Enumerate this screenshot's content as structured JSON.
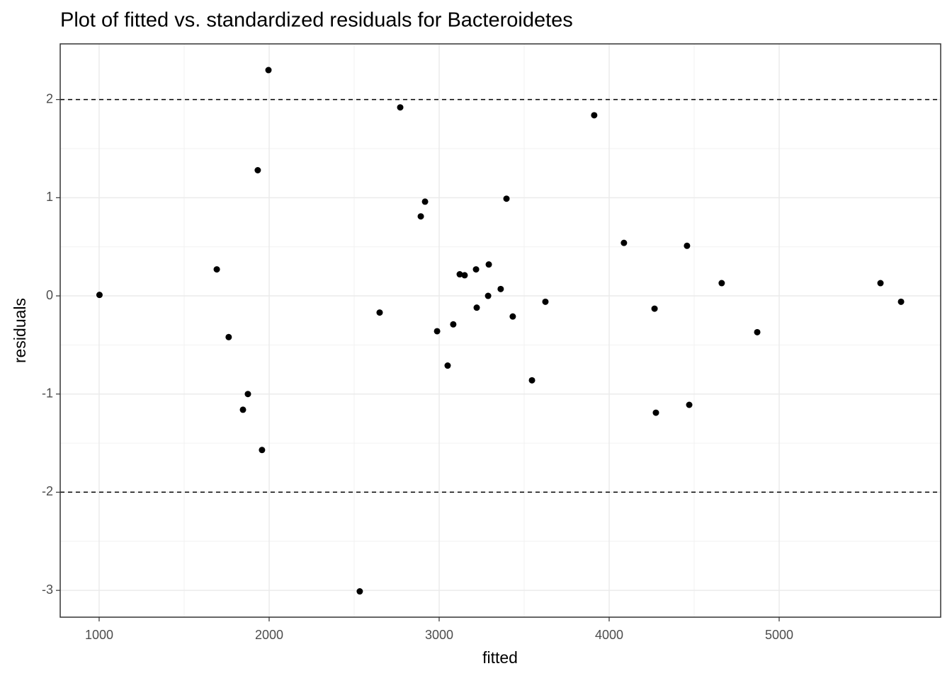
{
  "chart_data": {
    "type": "scatter",
    "title": "Plot of fitted vs. standardized residuals for Bacteroidetes",
    "x_label": "fitted",
    "y_label": "residuals",
    "color": "#000000",
    "grid": true,
    "xlim": [
      771,
      5950
    ],
    "ylim": [
      -3.273,
      2.567
    ],
    "xticks": [
      1000,
      2000,
      3000,
      4000,
      5000
    ],
    "yticks": [
      -3,
      -2,
      -1,
      0,
      1,
      2
    ],
    "hlines": [
      -2,
      2
    ],
    "x": [
      1002,
      1692,
      1762,
      1846,
      1875,
      1933,
      1958,
      1996,
      2533,
      2650,
      2771,
      2892,
      2917,
      2988,
      3050,
      3083,
      3121,
      3150,
      3217,
      3221,
      3288,
      3292,
      3362,
      3396,
      3433,
      3546,
      3625,
      3912,
      4087,
      4267,
      4275,
      4458,
      4471,
      4662,
      4871,
      5596,
      5717
    ],
    "values": [
      0.01,
      0.27,
      -0.42,
      -1.16,
      -1.0,
      1.28,
      -1.57,
      2.3,
      -3.01,
      -0.17,
      1.92,
      0.81,
      0.96,
      -0.36,
      -0.71,
      -0.29,
      0.22,
      0.21,
      0.27,
      -0.12,
      0.0,
      0.32,
      0.07,
      0.99,
      -0.21,
      -0.86,
      -0.06,
      1.84,
      0.54,
      -0.13,
      -1.19,
      0.51,
      -1.11,
      0.13,
      -0.37,
      0.13,
      -0.06
    ]
  }
}
